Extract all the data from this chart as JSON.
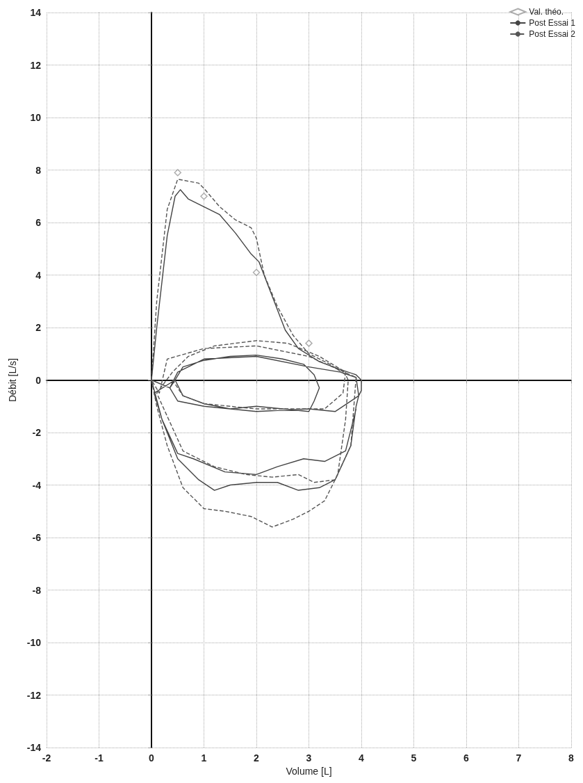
{
  "chart_data": {
    "type": "line",
    "xlabel": "Volume [L]",
    "ylabel": "Débit [L/s]",
    "xlim": [
      -2,
      8
    ],
    "ylim": [
      -14,
      14
    ],
    "xticks": [
      -2,
      -1,
      0,
      1,
      2,
      3,
      4,
      5,
      6,
      7,
      8
    ],
    "yticks": [
      -14,
      -12,
      -10,
      -8,
      -6,
      -4,
      -2,
      0,
      2,
      4,
      6,
      8,
      10,
      12,
      14
    ],
    "grid": true,
    "legend": "top right",
    "series": [
      {
        "name": "Val. théo.",
        "type": "scatter",
        "marker": "diamond",
        "color": "#999999",
        "x": [
          0.5,
          1,
          2,
          3
        ],
        "values": [
          7.9,
          7.0,
          4.1,
          1.4
        ]
      },
      {
        "name": "Post Essai 1",
        "marker": "none",
        "line_style": "solid",
        "color": "#444444",
        "x": [
          0,
          0.1,
          0.3,
          0.45,
          0.55,
          0.7,
          1.0,
          1.3,
          1.6,
          1.9,
          2.05,
          2.3,
          2.55,
          2.8,
          3.2,
          3.6,
          3.9,
          4.0,
          4.0,
          3.95,
          3.9,
          3.8,
          3.5,
          3.2,
          2.8,
          2.4,
          2.0,
          1.5,
          1.2,
          0.9,
          0.5,
          0.2,
          0,
          0.35,
          0.5,
          1.0,
          2.0,
          3.0,
          3.6,
          3.9,
          3.95,
          3.5,
          3.0,
          2.0,
          1.0,
          0.5,
          0.35,
          0.45,
          0.6,
          1.0,
          1.5,
          2.0,
          2.5,
          2.9,
          3.1,
          3.2,
          3.1,
          3.0,
          2.5,
          2.0,
          1.5,
          1.0,
          0.6,
          0.45,
          0.05,
          0.2,
          0.5,
          0.8,
          1.4,
          2.0,
          2.4,
          2.9,
          3.3,
          3.7,
          3.9
        ],
        "values": [
          0,
          2,
          5.5,
          7.0,
          7.25,
          6.9,
          6.6,
          6.3,
          5.6,
          4.8,
          4.5,
          3.2,
          1.9,
          1.2,
          0.7,
          0.4,
          0.2,
          0,
          -0.4,
          -0.6,
          -1,
          -2.5,
          -3.8,
          -4.1,
          -4.2,
          -3.9,
          -3.9,
          -4.0,
          -4.2,
          -3.8,
          -3.0,
          -1.5,
          0,
          -0.3,
          0.3,
          0.8,
          0.9,
          0.5,
          0.3,
          0.1,
          -0.6,
          -1.2,
          -1.1,
          -1.2,
          -1.0,
          -0.8,
          -0.3,
          0,
          0.5,
          0.75,
          0.9,
          0.95,
          0.8,
          0.6,
          0.2,
          -0.3,
          -0.8,
          -1.2,
          -1.1,
          -1.0,
          -1.1,
          -0.9,
          -0.6,
          0,
          -0.5,
          -1.5,
          -2.8,
          -3.0,
          -3.5,
          -3.6,
          -3.3,
          -3.0,
          -3.1,
          -2.7,
          -1.1
        ]
      },
      {
        "name": "Post Essai 2",
        "marker": "none",
        "line_style": "dashed",
        "color": "#555555",
        "x": [
          0,
          0.1,
          0.3,
          0.5,
          0.9,
          1.0,
          1.3,
          1.6,
          1.9,
          2.0,
          2.15,
          2.4,
          2.7,
          3.0,
          3.4,
          3.7,
          3.75,
          3.7,
          3.55,
          3.3,
          3.0,
          2.7,
          2.3,
          1.9,
          1.4,
          1.0,
          0.6,
          0.3,
          0.1,
          0,
          0.15,
          0.3,
          1.0,
          2.0,
          3.0,
          3.9,
          3.8,
          3.5,
          3.1,
          2.8,
          2.3,
          1.8,
          1.2,
          0.6,
          0.1,
          0.4,
          0.7,
          1.2,
          2.0,
          2.6,
          3.2,
          3.7,
          3.65,
          3.3,
          2.0,
          1.0,
          0.6,
          0.4
        ],
        "values": [
          0,
          3,
          6.5,
          7.65,
          7.5,
          7.3,
          6.6,
          6.1,
          5.8,
          5.4,
          4.0,
          2.8,
          1.7,
          1.0,
          0.6,
          0.2,
          0,
          -1.5,
          -3.6,
          -4.6,
          -5.0,
          -5.3,
          -5.6,
          -5.2,
          -5.0,
          -4.9,
          -4.1,
          -2.5,
          -1,
          0,
          -0.5,
          0.8,
          1.2,
          1.3,
          0.9,
          0.1,
          -2.5,
          -3.8,
          -3.9,
          -3.6,
          -3.7,
          -3.6,
          -3.3,
          -2.7,
          -0.5,
          0.3,
          0.9,
          1.3,
          1.5,
          1.4,
          0.9,
          0.3,
          -0.5,
          -1.1,
          -1.1,
          -0.9,
          -0.6,
          0
        ]
      }
    ]
  }
}
